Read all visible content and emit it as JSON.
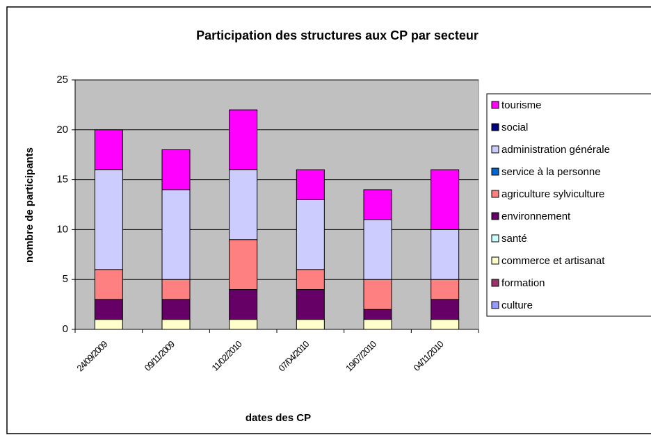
{
  "chart_data": {
    "type": "bar",
    "stacked": true,
    "title": "Participation des structures aux CP par secteur",
    "x_label": "dates des CP",
    "y_label": "nombre de participants",
    "categories": [
      "24/09/2009",
      "09/11/2009",
      "11/02/2010",
      "07/04/2010",
      "19/07/2010",
      "04/11/2010"
    ],
    "series": [
      {
        "name": "culture",
        "color": "#9999ff",
        "values": [
          0,
          0,
          0,
          0,
          0,
          0
        ]
      },
      {
        "name": "formation",
        "color": "#993366",
        "values": [
          0,
          0,
          0,
          0,
          0,
          0
        ]
      },
      {
        "name": "commerce et artisanat",
        "color": "#ffffcc",
        "values": [
          1,
          1,
          1,
          1,
          1,
          1
        ]
      },
      {
        "name": "santé",
        "color": "#ccffff",
        "values": [
          0,
          0,
          0,
          0,
          0,
          0
        ]
      },
      {
        "name": "environnement",
        "color": "#660066",
        "values": [
          2,
          2,
          3,
          3,
          1,
          2
        ]
      },
      {
        "name": "agriculture sylviculture",
        "color": "#ff8080",
        "values": [
          3,
          2,
          5,
          2,
          3,
          2
        ]
      },
      {
        "name": "service à la personne",
        "color": "#0066cc",
        "values": [
          0,
          0,
          0,
          0,
          0,
          0
        ]
      },
      {
        "name": "administration générale",
        "color": "#ccccff",
        "values": [
          10,
          9,
          7,
          7,
          6,
          5
        ]
      },
      {
        "name": "social",
        "color": "#000080",
        "values": [
          0,
          0,
          0,
          0,
          0,
          0
        ]
      },
      {
        "name": "tourisme",
        "color": "#ff00ff",
        "values": [
          4,
          4,
          6,
          3,
          3,
          6
        ]
      }
    ],
    "ylim": [
      0,
      25
    ],
    "yticks": [
      0,
      5,
      10,
      15,
      20,
      25
    ],
    "grid": true,
    "legend": "right",
    "plot_background": "#c0c0c0"
  }
}
